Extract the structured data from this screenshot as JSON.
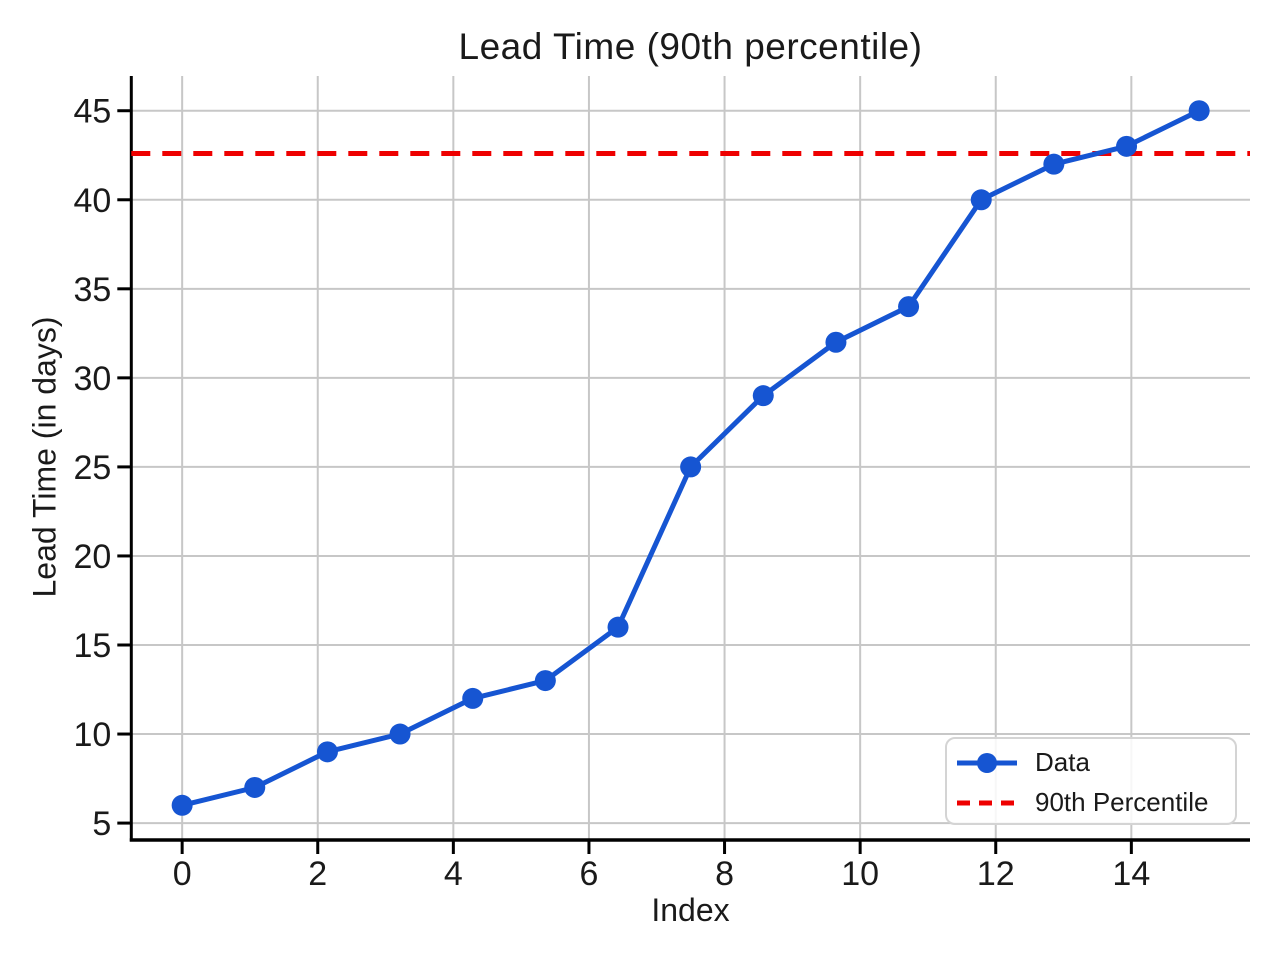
{
  "chart_data": {
    "type": "line",
    "title": "Lead Time (90th percentile)",
    "xlabel": "Index",
    "ylabel": "Lead Time (in days)",
    "x": [
      0,
      1.071,
      2.143,
      3.214,
      4.286,
      5.357,
      6.429,
      7.5,
      8.571,
      9.643,
      10.714,
      11.786,
      12.857,
      13.929,
      15
    ],
    "series": [
      {
        "name": "Data",
        "color": "#1655d2",
        "marker": "circle",
        "values": [
          6,
          7,
          9,
          10,
          12,
          13,
          16,
          25,
          29,
          32,
          34,
          40,
          42,
          43,
          45
        ]
      }
    ],
    "reference_line": {
      "name": "90th Percentile",
      "value": 42.6,
      "color": "#ee0000",
      "style": "dashed"
    },
    "xlim": [
      -0.75,
      15.75
    ],
    "ylim": [
      4.05,
      46.95
    ],
    "xticks": [
      0,
      2,
      4,
      6,
      8,
      10,
      12,
      14
    ],
    "yticks": [
      5,
      10,
      15,
      20,
      25,
      30,
      35,
      40,
      45
    ],
    "grid": true,
    "grid_color": "#c7c7c7",
    "axis_color": "#000000",
    "legend_position": "lower right"
  }
}
